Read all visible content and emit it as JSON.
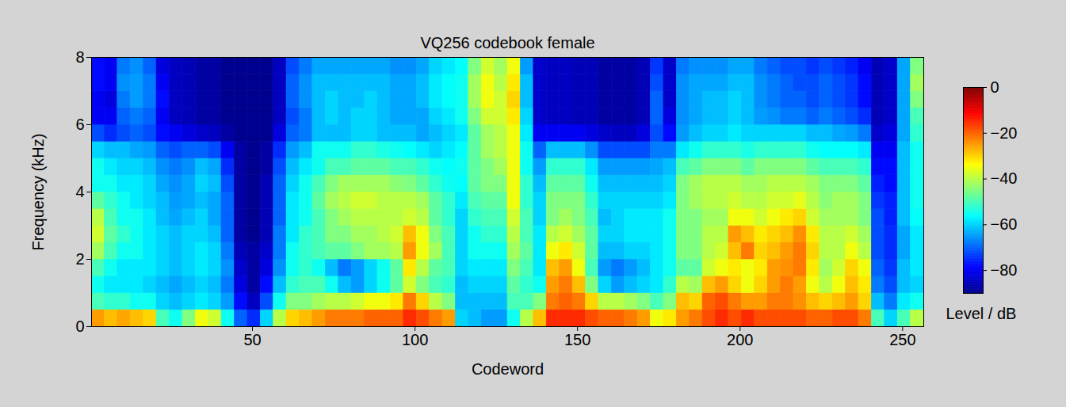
{
  "chart_data": {
    "type": "heatmap",
    "title": "VQ256 codebook female",
    "x_label": "Codeword",
    "y_label": "Frequency (kHz)",
    "xlim": [
      0.5,
      256.5
    ],
    "xticks": [
      50,
      100,
      150,
      200,
      250
    ],
    "ylim": [
      0,
      8
    ],
    "yticks": [
      0,
      2,
      4,
      6,
      8
    ],
    "colorbar": {
      "label": "Level / dB",
      "range": [
        -90,
        0
      ],
      "ticks": [
        0,
        -20,
        -40,
        -60,
        -80
      ]
    },
    "cells": {
      "x_edges": [
        0.5,
        4.5,
        8.5,
        12.5,
        16.5,
        20.5,
        24.5,
        28.5,
        32.5,
        36.5,
        40.5,
        44.5,
        48.5,
        52.5,
        56.5,
        60.5,
        64.5,
        68.5,
        72.5,
        76.5,
        80.5,
        84.5,
        88.5,
        92.5,
        96.5,
        100.5,
        104.5,
        108.5,
        112.5,
        116.5,
        120.5,
        124.5,
        128.5,
        132.5,
        136.5,
        140.5,
        144.5,
        148.5,
        152.5,
        156.5,
        160.5,
        164.5,
        168.5,
        172.5,
        176.5,
        180.5,
        184.5,
        188.5,
        192.5,
        196.5,
        200.5,
        204.5,
        208.5,
        212.5,
        216.5,
        220.5,
        224.5,
        228.5,
        232.5,
        236.5,
        240.5,
        244.5,
        248.5,
        252.5,
        256.5
      ],
      "y_edges": [
        0,
        0.5,
        1,
        1.5,
        2,
        2.5,
        3,
        3.5,
        4,
        4.5,
        5,
        5.5,
        6,
        6.5,
        7,
        7.5,
        8
      ],
      "values": [
        [
          -25,
          -50,
          -55,
          -50,
          -42,
          -38,
          -40,
          -48,
          -55,
          -55,
          -60,
          -72,
          -80,
          -80,
          -78,
          -78
        ],
        [
          -28,
          -52,
          -58,
          -55,
          -50,
          -48,
          -50,
          -52,
          -55,
          -58,
          -62,
          -75,
          -80,
          -82,
          -80,
          -80
        ],
        [
          -26,
          -52,
          -58,
          -58,
          -55,
          -52,
          -55,
          -55,
          -58,
          -60,
          -62,
          -72,
          -70,
          -68,
          -66,
          -68
        ],
        [
          -28,
          -55,
          -58,
          -58,
          -55,
          -55,
          -55,
          -58,
          -58,
          -60,
          -64,
          -70,
          -68,
          -65,
          -65,
          -66
        ],
        [
          -30,
          -55,
          -60,
          -58,
          -58,
          -58,
          -58,
          -60,
          -60,
          -62,
          -65,
          -72,
          -70,
          -68,
          -68,
          -70
        ],
        [
          -50,
          -60,
          -62,
          -60,
          -60,
          -60,
          -62,
          -62,
          -64,
          -66,
          -70,
          -78,
          -80,
          -78,
          -80,
          -82
        ],
        [
          -55,
          -62,
          -64,
          -62,
          -62,
          -62,
          -64,
          -65,
          -66,
          -68,
          -72,
          -80,
          -85,
          -85,
          -85,
          -85
        ],
        [
          -45,
          -60,
          -62,
          -60,
          -60,
          -60,
          -62,
          -64,
          -64,
          -66,
          -70,
          -82,
          -86,
          -86,
          -86,
          -86
        ],
        [
          -35,
          -58,
          -60,
          -58,
          -58,
          -60,
          -60,
          -62,
          -60,
          -62,
          -70,
          -84,
          -88,
          -88,
          -88,
          -88
        ],
        [
          -38,
          -60,
          -62,
          -60,
          -60,
          -62,
          -64,
          -64,
          -62,
          -64,
          -72,
          -85,
          -88,
          -88,
          -88,
          -88
        ],
        [
          -55,
          -65,
          -68,
          -66,
          -68,
          -70,
          -70,
          -70,
          -72,
          -75,
          -80,
          -88,
          -90,
          -90,
          -90,
          -90
        ],
        [
          -70,
          -78,
          -82,
          -84,
          -86,
          -88,
          -88,
          -88,
          -88,
          -88,
          -88,
          -90,
          -90,
          -90,
          -90,
          -90
        ],
        [
          -75,
          -85,
          -88,
          -88,
          -88,
          -90,
          -90,
          -90,
          -90,
          -90,
          -90,
          -90,
          -90,
          -90,
          -90,
          -90
        ],
        [
          -60,
          -72,
          -78,
          -82,
          -84,
          -86,
          -86,
          -86,
          -86,
          -88,
          -88,
          -90,
          -90,
          -90,
          -90,
          -90
        ],
        [
          -40,
          -55,
          -62,
          -66,
          -68,
          -68,
          -70,
          -70,
          -70,
          -72,
          -75,
          -82,
          -85,
          -85,
          -85,
          -85
        ],
        [
          -30,
          -45,
          -52,
          -55,
          -55,
          -58,
          -58,
          -58,
          -60,
          -62,
          -65,
          -70,
          -72,
          -70,
          -70,
          -72
        ],
        [
          -28,
          -45,
          -50,
          -52,
          -52,
          -52,
          -55,
          -55,
          -55,
          -58,
          -62,
          -68,
          -68,
          -66,
          -66,
          -68
        ],
        [
          -25,
          -42,
          -50,
          -55,
          -50,
          -50,
          -50,
          -48,
          -50,
          -55,
          -55,
          -62,
          -62,
          -62,
          -62,
          -64
        ],
        [
          -22,
          -40,
          -55,
          -62,
          -48,
          -45,
          -45,
          -42,
          -45,
          -50,
          -55,
          -62,
          -60,
          -60,
          -62,
          -64
        ],
        [
          -22,
          -40,
          -62,
          -68,
          -48,
          -45,
          -42,
          -40,
          -42,
          -50,
          -55,
          -62,
          -62,
          -62,
          -62,
          -64
        ],
        [
          -22,
          -38,
          -65,
          -65,
          -45,
          -42,
          -40,
          -38,
          -42,
          -48,
          -52,
          -60,
          -60,
          -62,
          -62,
          -64
        ],
        [
          -20,
          -35,
          -60,
          -60,
          -42,
          -42,
          -40,
          -38,
          -42,
          -48,
          -52,
          -60,
          -60,
          -60,
          -62,
          -64
        ],
        [
          -20,
          -35,
          -55,
          -55,
          -42,
          -40,
          -40,
          -40,
          -42,
          -48,
          -54,
          -62,
          -62,
          -62,
          -62,
          -64
        ],
        [
          -20,
          -32,
          -48,
          -48,
          -40,
          -38,
          -40,
          -40,
          -44,
          -50,
          -55,
          -62,
          -64,
          -64,
          -64,
          -66
        ],
        [
          -15,
          -22,
          -38,
          -32,
          -25,
          -28,
          -38,
          -40,
          -45,
          -50,
          -56,
          -62,
          -64,
          -64,
          -64,
          -66
        ],
        [
          -18,
          -30,
          -45,
          -40,
          -35,
          -35,
          -40,
          -42,
          -48,
          -52,
          -58,
          -64,
          -64,
          -62,
          -62,
          -64
        ],
        [
          -22,
          -40,
          -50,
          -48,
          -42,
          -45,
          -48,
          -48,
          -52,
          -55,
          -60,
          -62,
          -60,
          -58,
          -58,
          -60
        ],
        [
          -25,
          -45,
          -52,
          -50,
          -50,
          -50,
          -52,
          -52,
          -55,
          -56,
          -58,
          -60,
          -58,
          -56,
          -56,
          -58
        ],
        [
          -60,
          -62,
          -62,
          -60,
          -60,
          -60,
          -60,
          -58,
          -56,
          -55,
          -56,
          -58,
          -55,
          -55,
          -55,
          -56
        ],
        [
          -62,
          -62,
          -60,
          -58,
          -55,
          -55,
          -52,
          -50,
          -48,
          -48,
          -48,
          -48,
          -45,
          -42,
          -42,
          -45
        ],
        [
          -65,
          -62,
          -60,
          -58,
          -55,
          -52,
          -50,
          -48,
          -45,
          -45,
          -42,
          -42,
          -38,
          -35,
          -35,
          -38
        ],
        [
          -65,
          -62,
          -60,
          -58,
          -55,
          -52,
          -50,
          -48,
          -45,
          -42,
          -40,
          -40,
          -38,
          -38,
          -40,
          -42
        ],
        [
          -55,
          -50,
          -48,
          -45,
          -42,
          -40,
          -38,
          -35,
          -35,
          -35,
          -35,
          -35,
          -32,
          -30,
          -32,
          -35
        ],
        [
          -40,
          -50,
          -52,
          -50,
          -48,
          -50,
          -50,
          -52,
          -52,
          -55,
          -55,
          -58,
          -60,
          -62,
          -62,
          -65
        ],
        [
          -28,
          -45,
          -55,
          -58,
          -58,
          -58,
          -60,
          -60,
          -62,
          -65,
          -70,
          -80,
          -84,
          -84,
          -84,
          -84
        ],
        [
          -15,
          -22,
          -25,
          -28,
          -35,
          -40,
          -45,
          -45,
          -48,
          -52,
          -62,
          -80,
          -85,
          -85,
          -85,
          -85
        ],
        [
          -15,
          -20,
          -22,
          -25,
          -32,
          -38,
          -42,
          -45,
          -48,
          -52,
          -62,
          -80,
          -85,
          -85,
          -85,
          -85
        ],
        [
          -15,
          -22,
          -28,
          -35,
          -38,
          -42,
          -45,
          -45,
          -48,
          -52,
          -62,
          -80,
          -86,
          -86,
          -86,
          -86
        ],
        [
          -18,
          -30,
          -45,
          -50,
          -48,
          -48,
          -50,
          -52,
          -55,
          -58,
          -66,
          -82,
          -86,
          -86,
          -86,
          -86
        ],
        [
          -20,
          -40,
          -60,
          -65,
          -62,
          -60,
          -62,
          -60,
          -62,
          -65,
          -72,
          -84,
          -88,
          -88,
          -88,
          -88
        ],
        [
          -20,
          -40,
          -65,
          -68,
          -62,
          -60,
          -60,
          -60,
          -62,
          -65,
          -72,
          -85,
          -88,
          -88,
          -88,
          -88
        ],
        [
          -22,
          -42,
          -62,
          -65,
          -60,
          -58,
          -58,
          -60,
          -62,
          -65,
          -72,
          -85,
          -88,
          -88,
          -88,
          -88
        ],
        [
          -25,
          -45,
          -60,
          -62,
          -60,
          -58,
          -58,
          -60,
          -62,
          -65,
          -72,
          -82,
          -86,
          -86,
          -86,
          -86
        ],
        [
          -35,
          -50,
          -58,
          -58,
          -58,
          -58,
          -58,
          -60,
          -62,
          -64,
          -68,
          -72,
          -70,
          -70,
          -72,
          -74
        ],
        [
          -32,
          -45,
          -52,
          -55,
          -55,
          -55,
          -55,
          -58,
          -60,
          -62,
          -68,
          -78,
          -82,
          -84,
          -84,
          -84
        ],
        [
          -25,
          -28,
          -40,
          -48,
          -45,
          -45,
          -45,
          -45,
          -45,
          -50,
          -58,
          -65,
          -66,
          -66,
          -66,
          -68
        ],
        [
          -22,
          -30,
          -42,
          -48,
          -45,
          -45,
          -45,
          -42,
          -42,
          -48,
          -55,
          -62,
          -64,
          -64,
          -64,
          -66
        ],
        [
          -18,
          -20,
          -28,
          -38,
          -40,
          -40,
          -42,
          -40,
          -40,
          -45,
          -52,
          -60,
          -62,
          -62,
          -64,
          -66
        ],
        [
          -15,
          -18,
          -25,
          -35,
          -38,
          -40,
          -42,
          -40,
          -40,
          -45,
          -52,
          -60,
          -62,
          -62,
          -64,
          -66
        ],
        [
          -18,
          -22,
          -30,
          -32,
          -28,
          -25,
          -35,
          -38,
          -40,
          -45,
          -52,
          -58,
          -60,
          -60,
          -62,
          -64
        ],
        [
          -15,
          -25,
          -35,
          -35,
          -22,
          -28,
          -35,
          -40,
          -42,
          -48,
          -54,
          -60,
          -62,
          -62,
          -62,
          -64
        ],
        [
          -18,
          -25,
          -30,
          -32,
          -30,
          -32,
          -38,
          -40,
          -42,
          -45,
          -52,
          -60,
          -65,
          -66,
          -66,
          -68
        ],
        [
          -18,
          -22,
          -25,
          -25,
          -28,
          -30,
          -35,
          -38,
          -40,
          -45,
          -52,
          -60,
          -66,
          -68,
          -68,
          -70
        ],
        [
          -18,
          -22,
          -22,
          -24,
          -25,
          -28,
          -32,
          -38,
          -40,
          -45,
          -52,
          -60,
          -68,
          -70,
          -70,
          -72
        ],
        [
          -18,
          -24,
          -25,
          -22,
          -22,
          -24,
          -30,
          -36,
          -40,
          -45,
          -52,
          -60,
          -68,
          -70,
          -72,
          -72
        ],
        [
          -20,
          -28,
          -35,
          -32,
          -30,
          -32,
          -38,
          -40,
          -42,
          -48,
          -55,
          -62,
          -70,
          -72,
          -72,
          -74
        ],
        [
          -20,
          -30,
          -40,
          -42,
          -40,
          -40,
          -42,
          -44,
          -45,
          -50,
          -56,
          -62,
          -68,
          -70,
          -70,
          -72
        ],
        [
          -18,
          -28,
          -35,
          -38,
          -40,
          -40,
          -42,
          -42,
          -45,
          -50,
          -56,
          -64,
          -70,
          -72,
          -72,
          -74
        ],
        [
          -18,
          -25,
          -28,
          -30,
          -35,
          -38,
          -42,
          -42,
          -45,
          -50,
          -56,
          -65,
          -72,
          -74,
          -74,
          -76
        ],
        [
          -22,
          -30,
          -32,
          -35,
          -40,
          -42,
          -45,
          -45,
          -48,
          -52,
          -58,
          -68,
          -75,
          -78,
          -78,
          -80
        ],
        [
          -50,
          -62,
          -68,
          -70,
          -72,
          -72,
          -72,
          -74,
          -76,
          -78,
          -80,
          -84,
          -86,
          -86,
          -86,
          -86
        ],
        [
          -60,
          -68,
          -72,
          -74,
          -75,
          -75,
          -76,
          -76,
          -78,
          -78,
          -80,
          -82,
          -84,
          -84,
          -84,
          -84
        ],
        [
          -50,
          -58,
          -62,
          -62,
          -64,
          -64,
          -62,
          -62,
          -62,
          -62,
          -62,
          -64,
          -64,
          -64,
          -64,
          -64
        ],
        [
          -40,
          -55,
          -60,
          -58,
          -58,
          -58,
          -56,
          -55,
          -55,
          -55,
          -55,
          -52,
          -50,
          -45,
          -42,
          -45
        ]
      ]
    }
  }
}
